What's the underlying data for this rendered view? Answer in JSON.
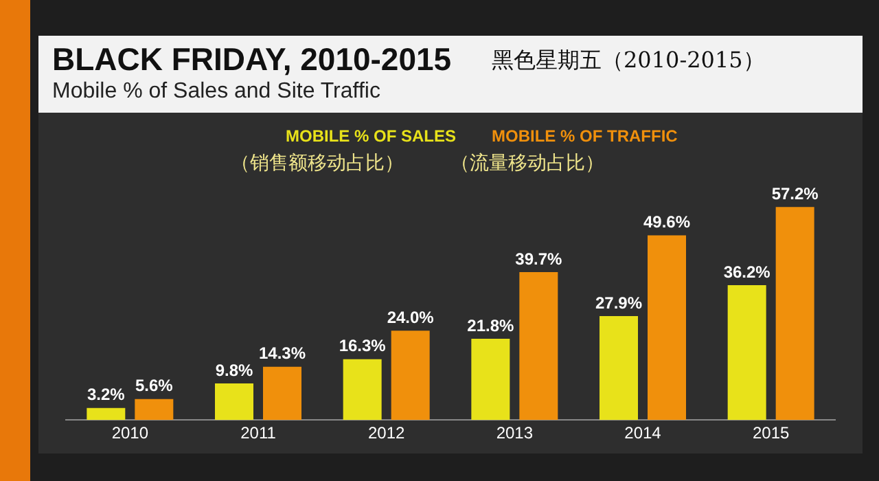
{
  "chart_data": {
    "type": "bar",
    "title": "BLACK FRIDAY, 2010-2015",
    "subtitle": "Mobile % of Sales and Site Traffic",
    "annotations": [
      "黑色星期五（2010-2015）",
      "（销售额移动占比）",
      "（流量移动占比）"
    ],
    "categories": [
      "2010",
      "2011",
      "2012",
      "2013",
      "2014",
      "2015"
    ],
    "series": [
      {
        "name": "MOBILE % OF SALES",
        "color": "#e8e21a",
        "values": [
          3.2,
          9.8,
          16.3,
          21.8,
          27.9,
          36.2
        ],
        "value_labels": [
          "3.2%",
          "9.8%",
          "16.3%",
          "21.8%",
          "27.9%",
          "36.2%"
        ]
      },
      {
        "name": "MOBILE % OF TRAFFIC",
        "color": "#f0900c",
        "values": [
          5.6,
          14.3,
          24.0,
          39.7,
          49.6,
          57.2
        ],
        "value_labels": [
          "5.6%",
          "14.3%",
          "24.0%",
          "39.7%",
          "49.6%",
          "57.2%"
        ]
      }
    ],
    "legend": "top"
  }
}
